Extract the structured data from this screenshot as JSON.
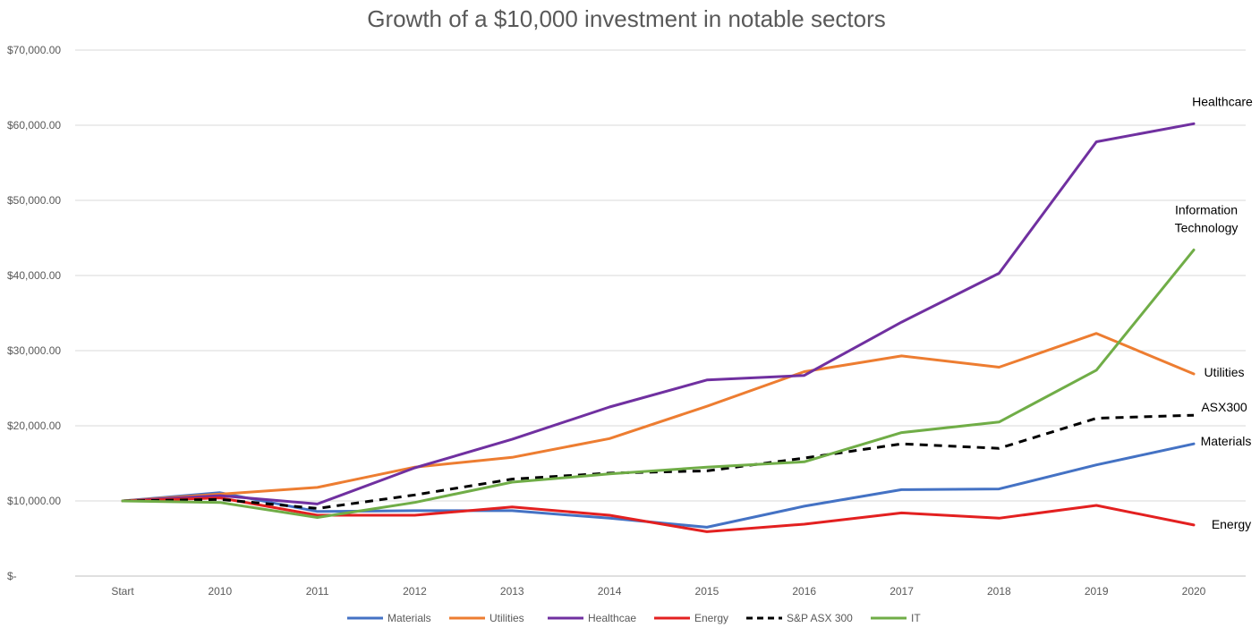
{
  "chart_data": {
    "type": "line",
    "title": "Growth of a $10,000 investment in notable sectors",
    "xlabel": "",
    "ylabel": "",
    "categories": [
      "Start",
      "2010",
      "2011",
      "2012",
      "2013",
      "2014",
      "2015",
      "2016",
      "2017",
      "2018",
      "2019",
      "2020"
    ],
    "ylim": [
      0,
      70000
    ],
    "y_ticks": [
      {
        "value": 0,
        "label": "$-"
      },
      {
        "value": 10000,
        "label": "$10,000.00"
      },
      {
        "value": 20000,
        "label": "$20,000.00"
      },
      {
        "value": 30000,
        "label": "$30,000.00"
      },
      {
        "value": 40000,
        "label": "$40,000.00"
      },
      {
        "value": 50000,
        "label": "$50,000.00"
      },
      {
        "value": 60000,
        "label": "$60,000.00"
      },
      {
        "value": 70000,
        "label": "$70,000.00"
      }
    ],
    "grid": true,
    "legend_position": "bottom",
    "series": [
      {
        "name": "Materials",
        "color": "#4472C4",
        "dashed": false,
        "values": [
          10000,
          11100,
          8600,
          8700,
          8700,
          7700,
          6500,
          9300,
          11500,
          11600,
          14800,
          17600
        ]
      },
      {
        "name": "Utilities",
        "color": "#ED7D31",
        "dashed": false,
        "values": [
          10000,
          10900,
          11800,
          14500,
          15800,
          18300,
          22600,
          27200,
          29300,
          27800,
          32300,
          26900
        ]
      },
      {
        "name": "Healthcae",
        "color": "#7030A0",
        "dashed": false,
        "values": [
          10000,
          10700,
          9600,
          14400,
          18200,
          22500,
          26100,
          26700,
          33800,
          40300,
          57800,
          60200
        ]
      },
      {
        "name": "Energy",
        "color": "#E32020",
        "dashed": false,
        "values": [
          10000,
          10400,
          8100,
          8100,
          9200,
          8100,
          5900,
          6900,
          8400,
          7700,
          9400,
          6800
        ]
      },
      {
        "name": "S&P ASX 300",
        "color": "#000000",
        "dashed": true,
        "values": [
          10000,
          10200,
          9000,
          10800,
          12900,
          13700,
          14000,
          15700,
          17600,
          17000,
          21000,
          21400
        ]
      },
      {
        "name": "IT",
        "color": "#70AD47",
        "dashed": false,
        "values": [
          10000,
          9800,
          7800,
          9800,
          12500,
          13600,
          14500,
          15200,
          19100,
          20500,
          27400,
          43400
        ]
      }
    ],
    "annotations": [
      {
        "series": "Healthcae",
        "lines": [
          "Healthcare"
        ]
      },
      {
        "series": "IT",
        "lines": [
          "Information",
          "Technology"
        ]
      },
      {
        "series": "Utilities",
        "lines": [
          "Utilities"
        ]
      },
      {
        "series": "S&P ASX 300",
        "lines": [
          "ASX300"
        ]
      },
      {
        "series": "Materials",
        "lines": [
          "Materials"
        ]
      },
      {
        "series": "Energy",
        "lines": [
          "Energy"
        ]
      }
    ]
  }
}
